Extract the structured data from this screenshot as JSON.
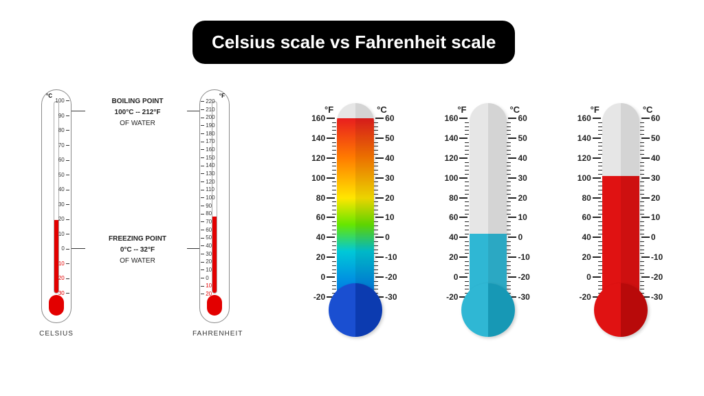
{
  "title": "Celsius scale vs Fahrenheit scale",
  "left_panel": {
    "celsius": {
      "unit": "°C",
      "label": "CELSIUS",
      "fill_percent": 38,
      "ticks": [
        100,
        90,
        80,
        70,
        60,
        50,
        40,
        30,
        20,
        10,
        0,
        -10,
        -20,
        -30
      ],
      "tick_color": "#333",
      "range": [
        -30,
        100
      ]
    },
    "fahrenheit": {
      "unit": "°F",
      "label": "FAHRENHEIT",
      "fill_percent": 40,
      "ticks": [
        220,
        210,
        200,
        190,
        180,
        170,
        160,
        150,
        140,
        130,
        120,
        110,
        100,
        90,
        80,
        70,
        60,
        50,
        40,
        30,
        20,
        10,
        0,
        -10,
        -20
      ],
      "range": [
        -20,
        220
      ]
    },
    "callouts": {
      "boiling": {
        "top": "BOILING POINT",
        "mid": "100°C -- 212°F",
        "bot": "OF WATER"
      },
      "freezing": {
        "top": "FREEZING POINT",
        "mid": "0°C -- 32°F",
        "bot": "OF WATER"
      }
    },
    "fluid_color": "#e30000"
  },
  "right_panel": {
    "f_header": "°F",
    "c_header": "°C",
    "f_ticks": [
      160,
      140,
      120,
      100,
      80,
      60,
      40,
      20,
      0,
      -20
    ],
    "c_ticks": [
      60,
      50,
      40,
      30,
      20,
      10,
      0,
      -10,
      -20,
      -30
    ],
    "track_color": "#e6e6e6",
    "thermos": [
      {
        "fill_percent": 92,
        "fill_style": "linear-gradient(to bottom,#e81e1e 0%,#ff7a00 22%,#ffe600 45%,#66e600 60%,#00c8d8 75%,#0073e6 100%)",
        "bulb_left": "#1a4fd1",
        "bulb_right": "#0c3bb0"
      },
      {
        "fill_percent": 32,
        "fill_style": "#2fb7d4",
        "bulb_left": "#2fb7d4",
        "bulb_right": "#1798b5"
      },
      {
        "fill_percent": 62,
        "fill_style": "#e01212",
        "bulb_left": "#e01212",
        "bulb_right": "#b80a0a"
      }
    ]
  },
  "colors": {
    "bg": "#ffffff",
    "banner_bg": "#000000",
    "banner_fg": "#ffffff",
    "text": "#222222"
  }
}
